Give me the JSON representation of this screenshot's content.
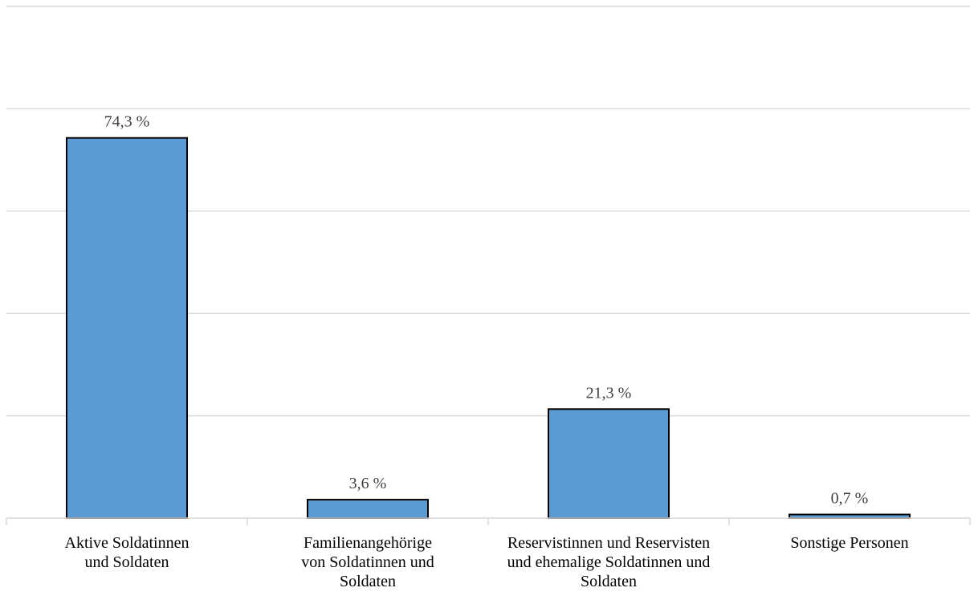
{
  "chart_data": {
    "type": "bar",
    "categories": [
      [
        "Aktive Soldatinnen",
        "und Soldaten"
      ],
      [
        "Familienangehörige",
        "von Soldatinnen und",
        "Soldaten"
      ],
      [
        "Reservistinnen und Reservisten",
        "und ehemalige Soldatinnen und",
        "Soldaten"
      ],
      [
        "Sonstige Personen"
      ]
    ],
    "values": [
      74.3,
      3.6,
      21.3,
      0.7
    ],
    "data_labels": [
      "74,3 %",
      "3,6 %",
      "21,3 %",
      "0,7 %"
    ],
    "ylim": [
      0,
      100
    ],
    "grid": true,
    "bar_color": "#5b9bd5",
    "bar_outline": "#000000",
    "grid_color": "#d9d9d9"
  }
}
